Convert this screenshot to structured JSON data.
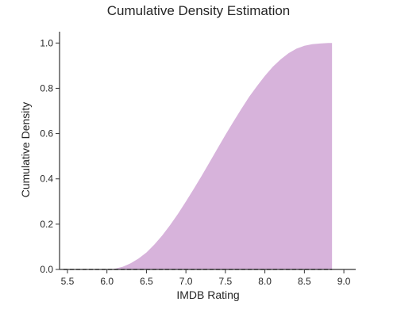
{
  "chart_data": {
    "type": "area",
    "title": "Cumulative Density Estimation",
    "xlabel": "IMDB Rating",
    "ylabel": "Cumulative Density",
    "xlim": [
      5.4,
      9.15
    ],
    "ylim": [
      0.0,
      1.05
    ],
    "xticks": [
      5.5,
      6.0,
      6.5,
      7.0,
      7.5,
      8.0,
      8.5,
      9.0
    ],
    "xtick_labels": [
      "5.5",
      "6.0",
      "6.5",
      "7.0",
      "7.5",
      "8.0",
      "8.5",
      "9.0"
    ],
    "yticks": [
      0.0,
      0.2,
      0.4,
      0.6,
      0.8,
      1.0
    ],
    "ytick_labels": [
      "0.0",
      "0.2",
      "0.4",
      "0.6",
      "0.8",
      "1.0"
    ],
    "grid": false,
    "series": [
      {
        "fill_color": "#d7b3db",
        "x": [
          5.45,
          5.6,
          5.8,
          6.0,
          6.1,
          6.2,
          6.3,
          6.4,
          6.5,
          6.6,
          6.7,
          6.8,
          6.9,
          7.0,
          7.1,
          7.2,
          7.3,
          7.4,
          7.5,
          7.6,
          7.7,
          7.8,
          7.9,
          8.0,
          8.1,
          8.2,
          8.3,
          8.4,
          8.5,
          8.6,
          8.7,
          8.8,
          8.85
        ],
        "y": [
          0.0,
          0.0,
          0.0,
          0.0,
          0.003,
          0.012,
          0.027,
          0.048,
          0.075,
          0.11,
          0.15,
          0.196,
          0.246,
          0.3,
          0.356,
          0.414,
          0.474,
          0.534,
          0.594,
          0.652,
          0.708,
          0.762,
          0.81,
          0.855,
          0.895,
          0.928,
          0.955,
          0.975,
          0.988,
          0.995,
          0.998,
          1.0,
          1.0
        ]
      }
    ],
    "baseline": {
      "style": "dashed",
      "color": "#333333",
      "y": 0.0
    }
  }
}
